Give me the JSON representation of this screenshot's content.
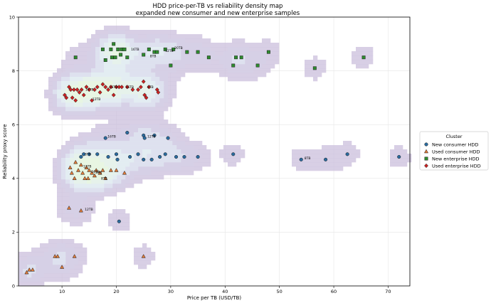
{
  "chart_data": {
    "type": "scatter",
    "title": "HDD price-per-TB vs reliability density map",
    "subtitle": "expanded new consumer and new enterprise samples",
    "xlabel": "Price per TB (USD/TB)",
    "ylabel": "Reliability proxy score",
    "xlim": [
      2,
      74
    ],
    "ylim": [
      0,
      10
    ],
    "xticks": [
      10,
      20,
      30,
      40,
      50,
      60,
      70
    ],
    "yticks": [
      0,
      2,
      4,
      6,
      8,
      10
    ],
    "grid": true,
    "legend": {
      "title": "Cluster",
      "placement": "right"
    },
    "series": [
      {
        "name": "New consumer HDD",
        "marker": "circle",
        "color": "#2b6b9e",
        "points": [
          [
            18.0,
            5.5
          ],
          [
            22.0,
            5.7
          ],
          [
            25.0,
            5.6
          ],
          [
            25.2,
            5.5
          ],
          [
            27.0,
            5.6
          ],
          [
            29.5,
            5.5
          ],
          [
            15.0,
            4.9
          ],
          [
            16.5,
            4.9
          ],
          [
            18.5,
            4.8
          ],
          [
            20.0,
            4.9
          ],
          [
            20.2,
            4.7
          ],
          [
            22.5,
            4.8
          ],
          [
            24.0,
            4.9
          ],
          [
            25.0,
            4.7
          ],
          [
            26.5,
            4.7
          ],
          [
            28.0,
            4.8
          ],
          [
            29.0,
            4.9
          ],
          [
            31.0,
            4.8
          ],
          [
            32.5,
            4.8
          ],
          [
            35.0,
            4.8
          ],
          [
            41.5,
            4.9
          ],
          [
            13.5,
            4.8
          ],
          [
            14.0,
            4.9
          ],
          [
            20.5,
            2.4
          ],
          [
            54.0,
            4.7
          ],
          [
            58.5,
            4.7
          ],
          [
            62.5,
            4.9
          ],
          [
            72.0,
            4.8
          ]
        ],
        "labels": [
          [
            "8TB",
            13.8,
            4.9
          ],
          [
            "16TB",
            18.0,
            5.55
          ],
          [
            "12TB",
            25.3,
            5.55
          ],
          [
            "8TB",
            54.2,
            4.75
          ]
        ]
      },
      {
        "name": "Used consumer HDD",
        "marker": "triangle",
        "color": "#e07b39",
        "points": [
          [
            11.5,
            4.4
          ],
          [
            11.8,
            4.2
          ],
          [
            12.3,
            4.0
          ],
          [
            12.5,
            4.6
          ],
          [
            13.0,
            4.3
          ],
          [
            13.5,
            4.5
          ],
          [
            13.8,
            4.2
          ],
          [
            14.2,
            4.0
          ],
          [
            14.5,
            4.4
          ],
          [
            15.0,
            4.3
          ],
          [
            15.5,
            4.2
          ],
          [
            16.0,
            4.1
          ],
          [
            16.3,
            4.3
          ],
          [
            17.0,
            4.2
          ],
          [
            17.5,
            4.3
          ],
          [
            18.0,
            4.0
          ],
          [
            19.0,
            4.3
          ],
          [
            20.0,
            4.3
          ],
          [
            21.5,
            4.2
          ],
          [
            14.8,
            4.0
          ],
          [
            11.3,
            2.9
          ],
          [
            13.5,
            2.8
          ],
          [
            3.5,
            0.5
          ],
          [
            4.0,
            0.6
          ],
          [
            4.6,
            0.6
          ],
          [
            8.7,
            1.1
          ],
          [
            9.2,
            1.1
          ],
          [
            10.0,
            0.7
          ],
          [
            12.3,
            1.1
          ],
          [
            25.0,
            1.1
          ]
        ],
        "labels": [
          [
            "12TB",
            13.5,
            4.45
          ],
          [
            "16TB",
            15.0,
            4.25
          ],
          [
            "4TB",
            15.8,
            4.2
          ],
          [
            "8TB",
            16.8,
            4.0
          ],
          [
            "12TB",
            13.8,
            2.85
          ]
        ]
      },
      {
        "name": "New enterprise HDD",
        "marker": "square",
        "color": "#2e8b2e",
        "points": [
          [
            12.5,
            8.5
          ],
          [
            17.5,
            8.8
          ],
          [
            18.0,
            8.4
          ],
          [
            19.0,
            8.8
          ],
          [
            19.2,
            8.5
          ],
          [
            19.5,
            9.0
          ],
          [
            19.8,
            8.5
          ],
          [
            20.3,
            8.8
          ],
          [
            20.8,
            8.6
          ],
          [
            21.0,
            8.8
          ],
          [
            21.5,
            8.8
          ],
          [
            22.0,
            8.5
          ],
          [
            25.0,
            8.6
          ],
          [
            26.0,
            8.8
          ],
          [
            27.0,
            8.7
          ],
          [
            27.5,
            8.7
          ],
          [
            29.0,
            8.8
          ],
          [
            30.0,
            8.2
          ],
          [
            30.5,
            8.8
          ],
          [
            33.0,
            8.7
          ],
          [
            35.0,
            8.7
          ],
          [
            37.0,
            8.5
          ],
          [
            41.5,
            8.2
          ],
          [
            42.0,
            8.5
          ],
          [
            43.0,
            8.5
          ],
          [
            46.0,
            8.2
          ],
          [
            48.0,
            8.7
          ],
          [
            56.5,
            8.1
          ],
          [
            65.5,
            8.5
          ]
        ],
        "labels": [
          [
            "16TB",
            22.3,
            8.8
          ],
          [
            "8TB",
            25.8,
            8.55
          ],
          [
            "12TB",
            28.6,
            8.75
          ],
          [
            "20TB",
            30.3,
            8.85
          ]
        ]
      },
      {
        "name": "Used enterprise HDD",
        "marker": "diamond",
        "color": "#cc2222",
        "points": [
          [
            10.5,
            7.1
          ],
          [
            10.8,
            7.0
          ],
          [
            11.3,
            7.4
          ],
          [
            11.6,
            7.3
          ],
          [
            11.9,
            7.0
          ],
          [
            12.2,
            7.3
          ],
          [
            12.5,
            6.9
          ],
          [
            12.8,
            7.3
          ],
          [
            13.2,
            7.2
          ],
          [
            13.6,
            7.3
          ],
          [
            14.0,
            7.1
          ],
          [
            14.5,
            7.4
          ],
          [
            15.0,
            7.3
          ],
          [
            15.5,
            6.9
          ],
          [
            16.0,
            7.3
          ],
          [
            16.5,
            7.4
          ],
          [
            17.0,
            7.2
          ],
          [
            17.5,
            7.5
          ],
          [
            18.0,
            7.4
          ],
          [
            18.5,
            7.3
          ],
          [
            19.0,
            7.4
          ],
          [
            19.5,
            7.1
          ],
          [
            20.0,
            7.4
          ],
          [
            20.5,
            7.4
          ],
          [
            21.0,
            7.4
          ],
          [
            22.0,
            7.4
          ],
          [
            23.0,
            7.3
          ],
          [
            24.0,
            7.3
          ],
          [
            24.5,
            7.4
          ],
          [
            25.0,
            7.6
          ],
          [
            25.2,
            7.1
          ],
          [
            25.5,
            7.0
          ],
          [
            26.0,
            7.4
          ],
          [
            27.5,
            7.3
          ],
          [
            27.7,
            7.2
          ]
        ],
        "labels": [
          [
            "16TB",
            13.9,
            7.3
          ],
          [
            "12TB",
            15.2,
            6.95
          ],
          [
            "16TB",
            18.3,
            7.4
          ],
          [
            "16TB",
            21.3,
            7.4
          ],
          [
            "8TB",
            25.3,
            7.4
          ]
        ]
      }
    ]
  }
}
